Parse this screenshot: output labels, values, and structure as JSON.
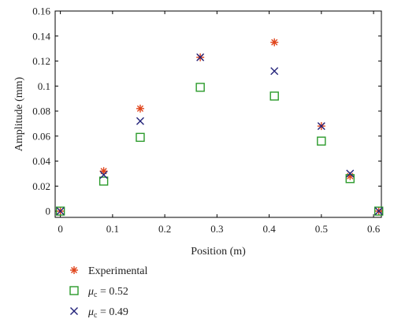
{
  "chart_data": {
    "type": "scatter",
    "xlabel": "Position (m)",
    "ylabel": "Amplitude (mm)",
    "xlim": [
      -0.01,
      0.615
    ],
    "ylim": [
      -0.005,
      0.16
    ],
    "xticks": [
      "0",
      "0.1",
      "0.2",
      "0.3",
      "0.4",
      "0.5",
      "0.6"
    ],
    "yticks": [
      "0",
      "0.02",
      "0.04",
      "0.06",
      "0.08",
      "0.1",
      "0.12",
      "0.14",
      "0.16"
    ],
    "grid": false,
    "legend_position": "below",
    "series": [
      {
        "name": "Experimental",
        "marker": "asterisk",
        "color": "#e0441b",
        "points": [
          {
            "x": 0,
            "y": 0
          },
          {
            "x": 0.083,
            "y": 0.032
          },
          {
            "x": 0.153,
            "y": 0.082
          },
          {
            "x": 0.268,
            "y": 0.123
          },
          {
            "x": 0.41,
            "y": 0.135
          },
          {
            "x": 0.5,
            "y": 0.068
          },
          {
            "x": 0.555,
            "y": 0.028
          },
          {
            "x": 0.61,
            "y": 0
          }
        ]
      },
      {
        "name": "μc = 0.52",
        "marker": "square",
        "color": "#2a9a2a",
        "points": [
          {
            "x": 0,
            "y": 0
          },
          {
            "x": 0.083,
            "y": 0.024
          },
          {
            "x": 0.153,
            "y": 0.059
          },
          {
            "x": 0.268,
            "y": 0.099
          },
          {
            "x": 0.41,
            "y": 0.092
          },
          {
            "x": 0.5,
            "y": 0.056
          },
          {
            "x": 0.555,
            "y": 0.026
          },
          {
            "x": 0.61,
            "y": 0
          }
        ]
      },
      {
        "name": "μc = 0.49",
        "marker": "x",
        "color": "#23237a",
        "points": [
          {
            "x": 0,
            "y": 0
          },
          {
            "x": 0.083,
            "y": 0.029
          },
          {
            "x": 0.153,
            "y": 0.072
          },
          {
            "x": 0.268,
            "y": 0.123
          },
          {
            "x": 0.41,
            "y": 0.112
          },
          {
            "x": 0.5,
            "y": 0.068
          },
          {
            "x": 0.555,
            "y": 0.03
          },
          {
            "x": 0.61,
            "y": 0
          }
        ]
      }
    ]
  },
  "legend": {
    "items": [
      {
        "label": "Experimental"
      },
      {
        "symbol": "μ",
        "subscript": "c",
        "text": " = 0.52"
      },
      {
        "symbol": "μ",
        "subscript": "c",
        "text": " = 0.49"
      }
    ]
  }
}
